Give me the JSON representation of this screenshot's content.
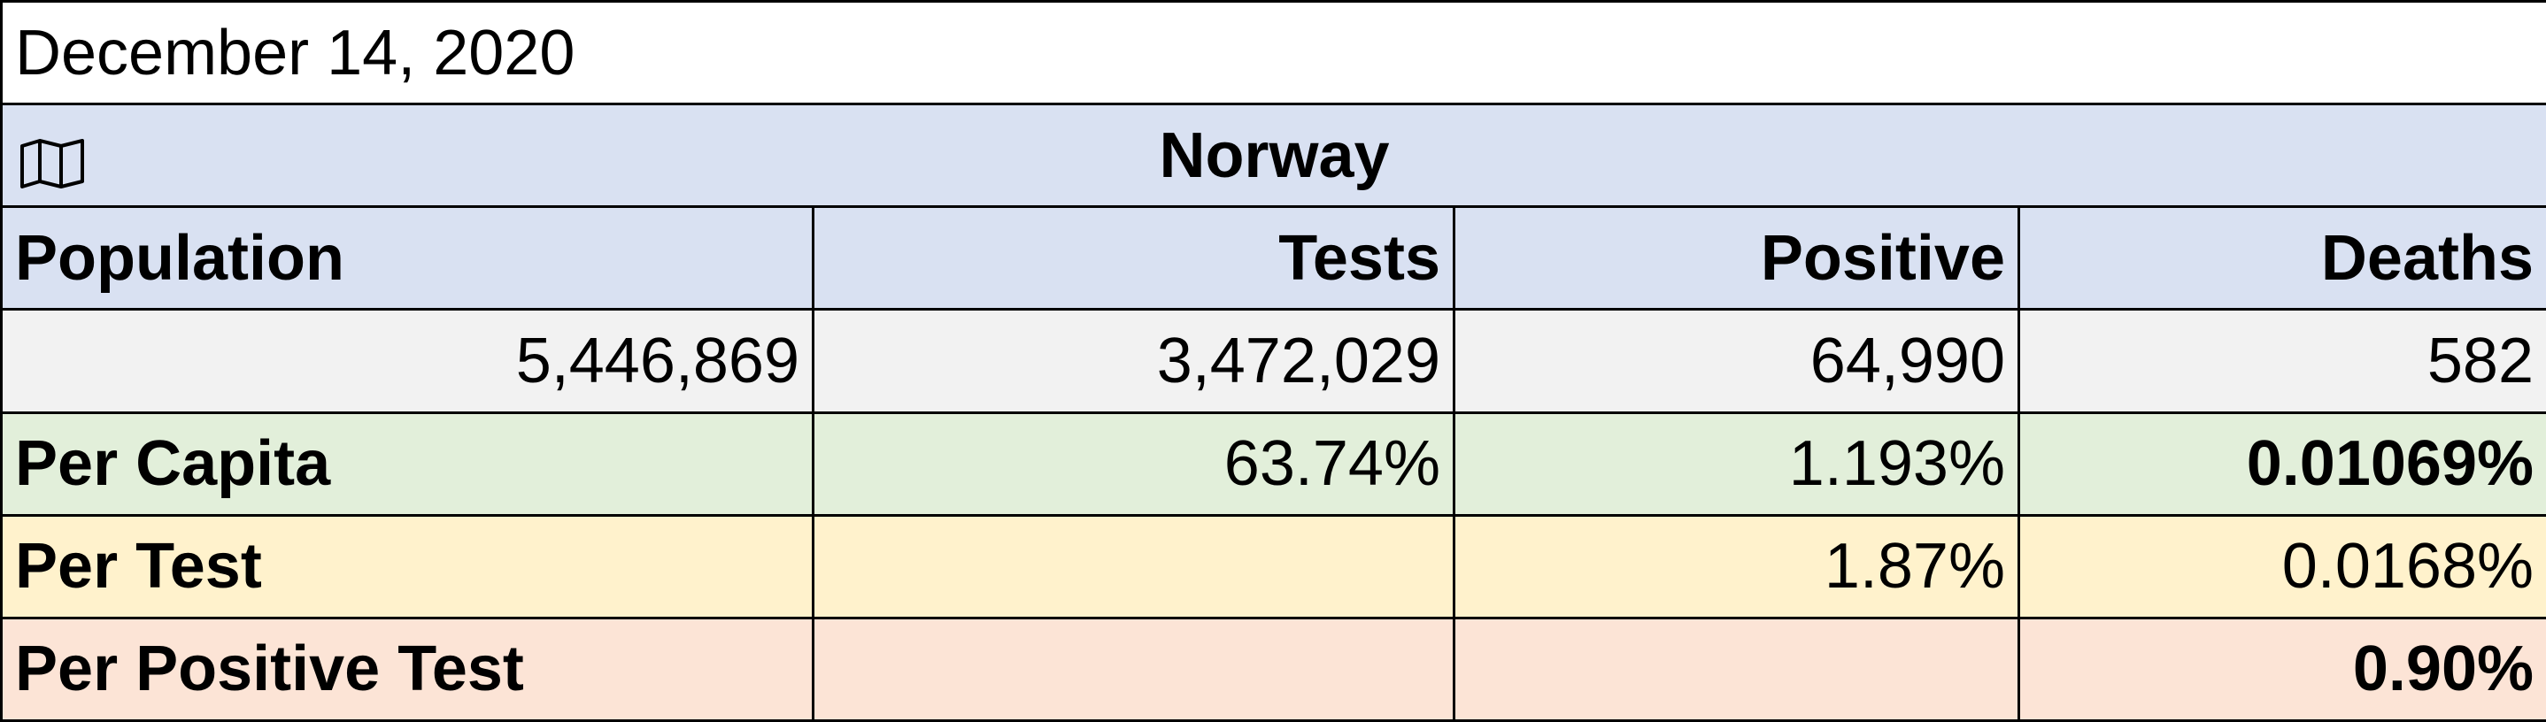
{
  "date": "December 14, 2020",
  "title": "Norway",
  "columns": [
    "Population",
    "Tests",
    "Positive",
    "Deaths"
  ],
  "counts": [
    "5,446,869",
    "3,472,029",
    "64,990",
    "582"
  ],
  "per_capita": {
    "label": "Per Capita",
    "tests": "63.74%",
    "positive": "1.193%",
    "deaths": "0.01069%"
  },
  "per_test": {
    "label": "Per Test",
    "positive": "1.87%",
    "deaths": "0.0168%"
  },
  "per_positive_test": {
    "label": "Per Positive Test",
    "deaths": "0.90%"
  }
}
